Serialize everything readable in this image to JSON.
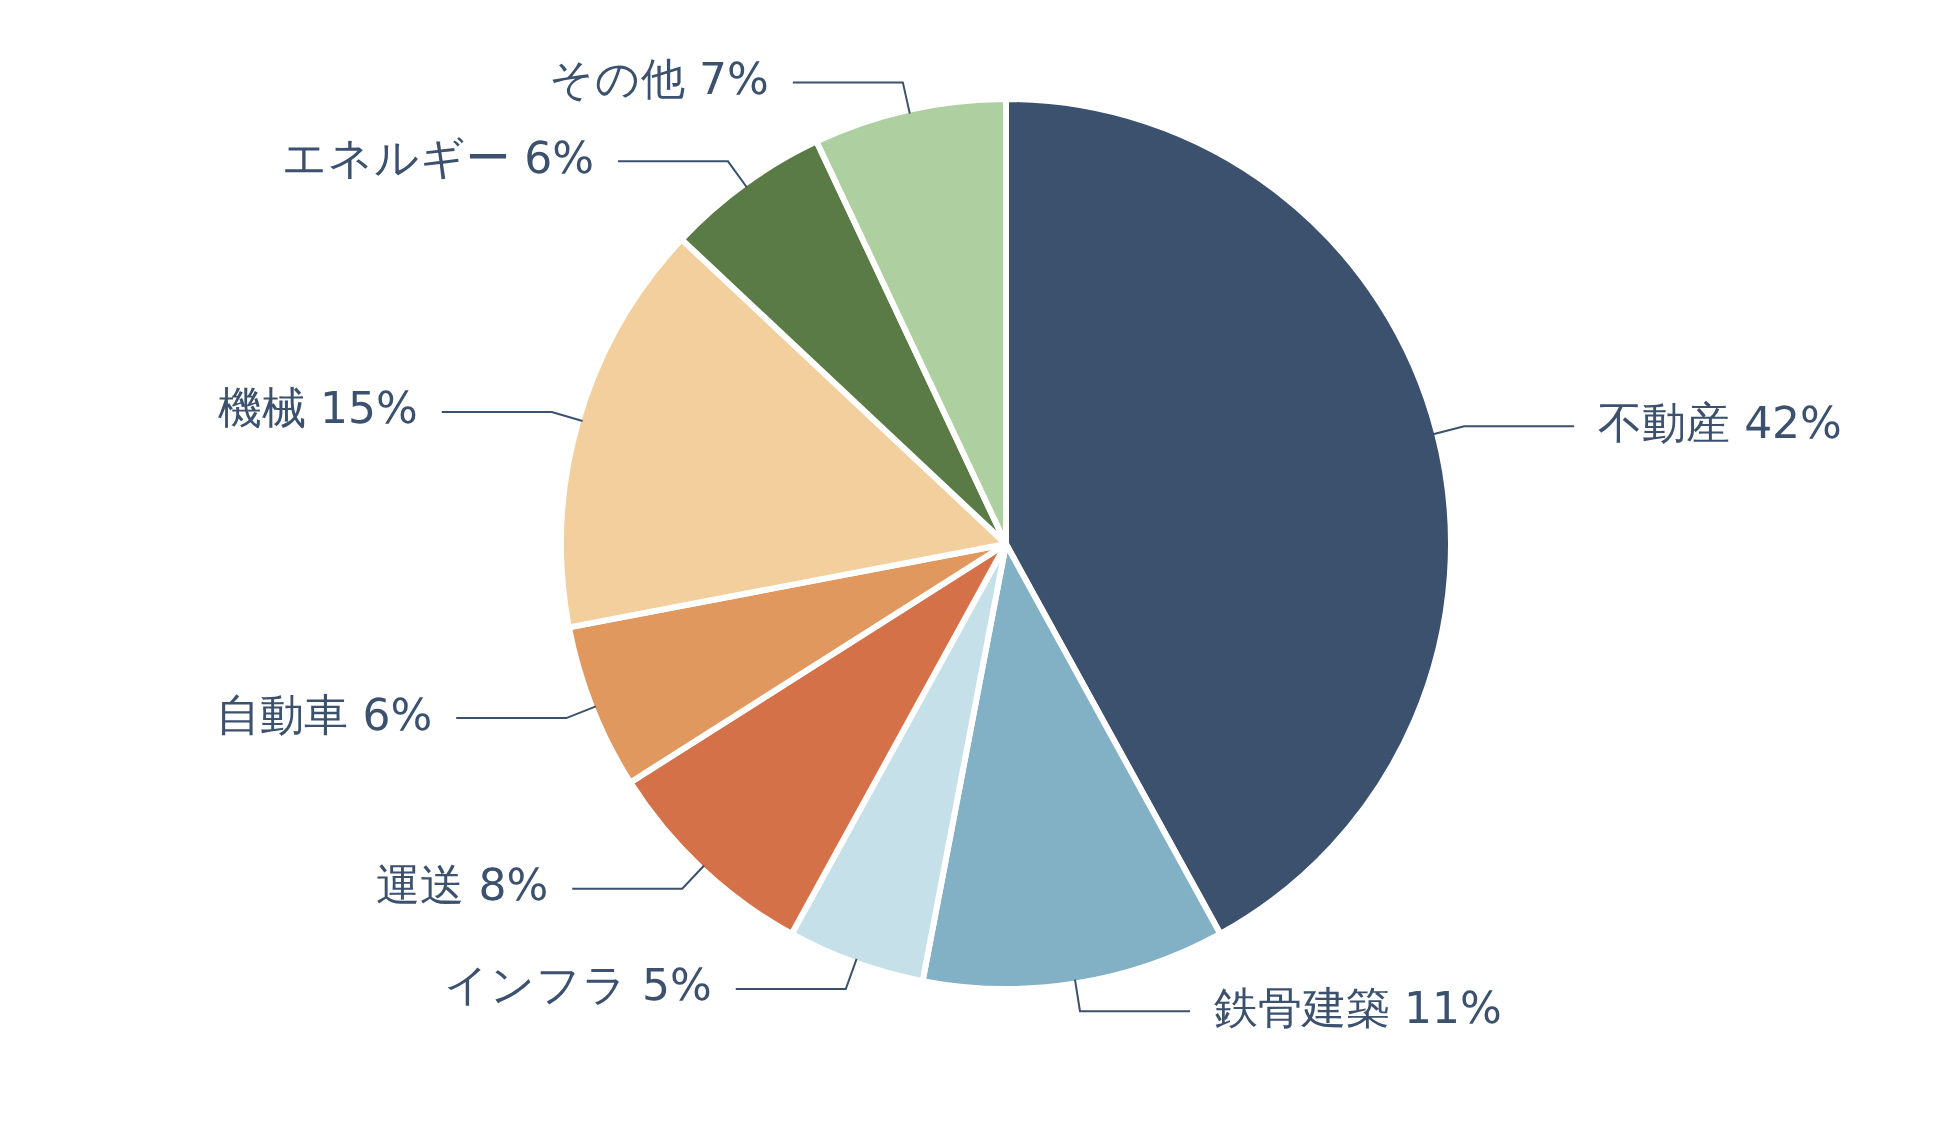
{
  "chart_data": {
    "type": "pie",
    "categories": [
      "不動産",
      "鉄骨建築",
      "インフラ",
      "運送",
      "自動車",
      "機械",
      "エネルギー",
      "その他"
    ],
    "values": [
      42,
      11,
      5,
      8,
      6,
      15,
      6,
      7
    ],
    "value_labels": [
      "42%",
      "11%",
      "5%",
      "8%",
      "6%",
      "15%",
      "6%",
      "7%"
    ],
    "colors": [
      "#3b516d",
      "#82b1c6",
      "#c5e0e8",
      "#d47148",
      "#e0985e",
      "#f2cf9c",
      "#5a7b46",
      "#aecf9f"
    ],
    "legend": false
  }
}
